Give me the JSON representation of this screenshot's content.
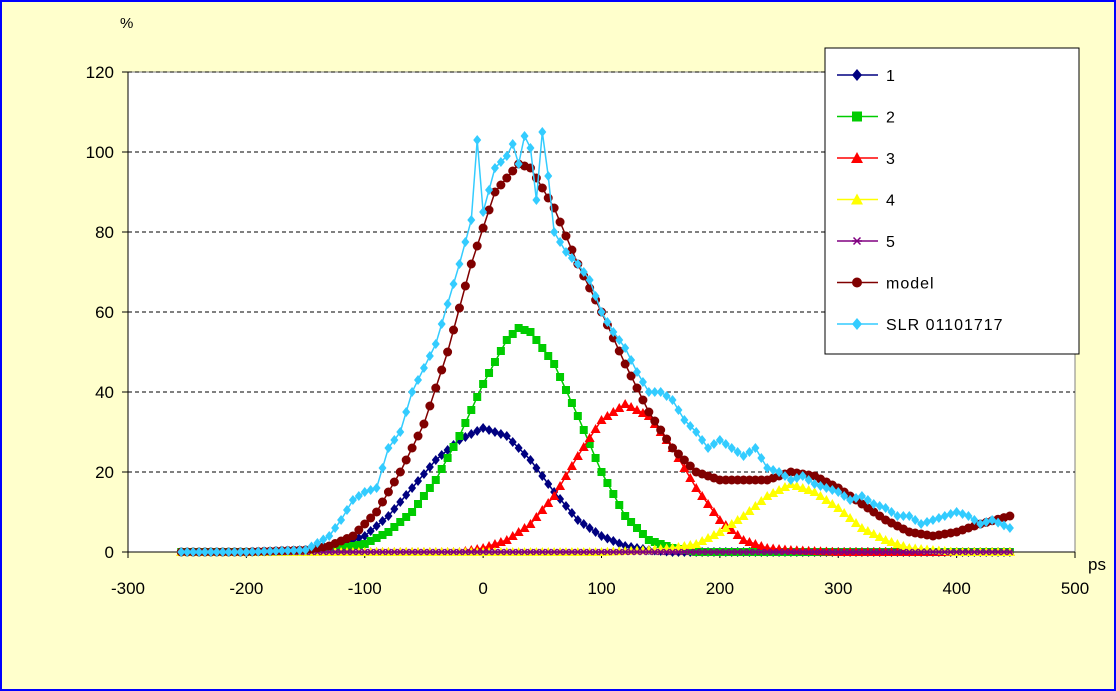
{
  "chart_data": {
    "type": "line",
    "y_unit": "%",
    "x_unit": "ps",
    "xlim": [
      -300,
      500
    ],
    "ylim": [
      0,
      120
    ],
    "x_ticks": [
      "-300",
      "-200",
      "-100",
      "0",
      "100",
      "200",
      "300",
      "400",
      "500"
    ],
    "y_ticks": [
      "0",
      "20",
      "40",
      "60",
      "80",
      "100",
      "120"
    ],
    "grid": "horizontal dashed",
    "legend_position": "top-right",
    "series": [
      {
        "name": "1",
        "color": "#000080",
        "marker": "diamond",
        "x": [
          -255,
          -200,
          -150,
          -130,
          -100,
          -80,
          -60,
          -40,
          -20,
          0,
          20,
          40,
          60,
          80,
          100,
          120,
          140,
          160,
          180,
          200,
          250,
          300,
          350,
          400,
          445
        ],
        "y": [
          0,
          0,
          0.5,
          1,
          4,
          9,
          16,
          23,
          28,
          31,
          29,
          23,
          15,
          8,
          4,
          1.5,
          0.5,
          0,
          0,
          0,
          0,
          0,
          0,
          0,
          0
        ]
      },
      {
        "name": "2",
        "color": "#00cc00",
        "marker": "square",
        "x": [
          -255,
          -200,
          -150,
          -130,
          -100,
          -80,
          -60,
          -40,
          -20,
          0,
          20,
          30,
          40,
          60,
          80,
          100,
          120,
          140,
          160,
          180,
          200,
          250,
          300,
          350,
          400,
          445
        ],
        "y": [
          0,
          0,
          0,
          0.5,
          2,
          5,
          10,
          18,
          29,
          42,
          53,
          56,
          55,
          47,
          34,
          20,
          9,
          3,
          1,
          0,
          0,
          0,
          0,
          0,
          0,
          0
        ]
      },
      {
        "name": "3",
        "color": "#ff0000",
        "marker": "triangle",
        "x": [
          -255,
          -100,
          -20,
          0,
          20,
          40,
          60,
          80,
          100,
          120,
          140,
          160,
          180,
          200,
          220,
          240,
          260,
          300,
          350,
          445
        ],
        "y": [
          0,
          0,
          0,
          1,
          3,
          7,
          14,
          24,
          33,
          37,
          34,
          26,
          16,
          8,
          3,
          1,
          0.5,
          0,
          0,
          0
        ]
      },
      {
        "name": "4",
        "color": "#ffff00",
        "marker": "triangle",
        "x": [
          -255,
          100,
          140,
          160,
          180,
          200,
          220,
          240,
          260,
          280,
          300,
          320,
          340,
          360,
          380,
          400,
          445
        ],
        "y": [
          0,
          0,
          0.5,
          1,
          2,
          5,
          9,
          14,
          17,
          15,
          11,
          6,
          3,
          1,
          0.5,
          0,
          0
        ]
      },
      {
        "name": "5",
        "color": "#800080",
        "marker": "star",
        "x": [
          -255,
          -100,
          0,
          100,
          200,
          300,
          400,
          445
        ],
        "y": [
          0,
          0,
          0,
          0,
          0,
          0,
          0,
          0
        ]
      },
      {
        "name": "model",
        "color": "#800000",
        "marker": "circle",
        "x": [
          -255,
          -200,
          -150,
          -130,
          -110,
          -90,
          -70,
          -50,
          -30,
          -10,
          10,
          30,
          40,
          60,
          80,
          100,
          120,
          140,
          160,
          180,
          200,
          220,
          240,
          260,
          280,
          300,
          320,
          340,
          360,
          380,
          400,
          420,
          445
        ],
        "y": [
          0,
          0,
          0.5,
          1.5,
          4,
          10,
          20,
          32,
          50,
          72,
          90,
          97,
          96,
          86,
          72,
          60,
          47,
          35,
          26,
          20,
          18,
          18,
          18,
          20,
          19,
          16,
          12,
          8,
          5,
          4,
          5,
          7,
          9
        ]
      },
      {
        "name": "SLR 01101717",
        "color": "#33ccff",
        "marker": "diamond",
        "x": [
          -255,
          -200,
          -150,
          -130,
          -120,
          -110,
          -100,
          -90,
          -80,
          -70,
          -60,
          -50,
          -40,
          -30,
          -20,
          -10,
          -5,
          0,
          10,
          20,
          25,
          30,
          35,
          40,
          45,
          50,
          55,
          60,
          70,
          80,
          90,
          100,
          110,
          120,
          130,
          140,
          150,
          160,
          170,
          180,
          190,
          200,
          210,
          220,
          230,
          240,
          250,
          260,
          270,
          280,
          290,
          300,
          310,
          320,
          330,
          340,
          350,
          360,
          370,
          380,
          390,
          400,
          410,
          420,
          430,
          445
        ],
        "y": [
          0,
          0,
          0.5,
          4,
          8,
          13,
          15,
          16,
          26,
          30,
          40,
          46,
          52,
          62,
          72,
          83,
          103,
          85,
          96,
          99,
          102,
          97,
          104,
          101,
          88,
          105,
          94,
          80,
          75,
          72,
          68,
          60,
          55,
          51,
          45,
          40,
          40,
          38,
          33,
          30,
          26,
          28,
          26,
          24,
          26,
          21,
          20,
          18,
          19,
          17,
          16,
          15,
          13,
          14,
          12,
          11,
          9,
          9,
          7,
          8,
          9,
          10,
          9,
          7,
          8,
          6
        ]
      }
    ]
  }
}
